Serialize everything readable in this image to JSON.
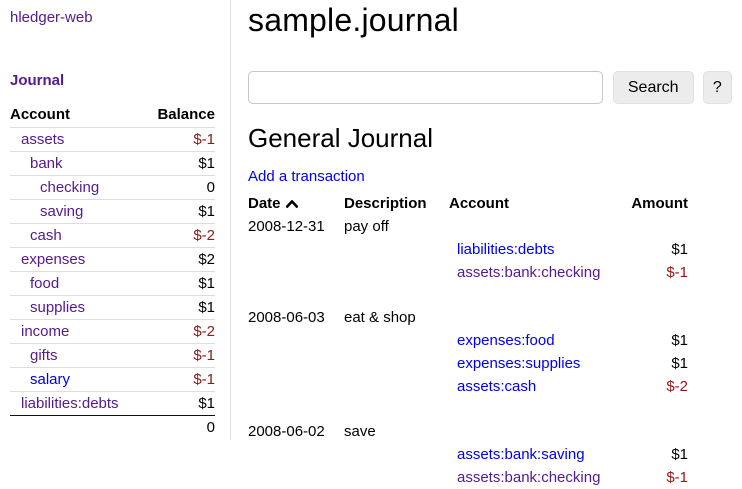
{
  "app": {
    "title": "hledger-web"
  },
  "sidebar": {
    "nav_heading": "Journal",
    "table": {
      "col_account": "Account",
      "col_balance": "Balance",
      "rows": [
        {
          "name": "assets",
          "depth": 0,
          "balance": "$-1",
          "negative": true,
          "visited": true
        },
        {
          "name": "bank",
          "depth": 1,
          "balance": "$1",
          "negative": false,
          "visited": true
        },
        {
          "name": "checking",
          "depth": 2,
          "balance": "0",
          "negative": false,
          "visited": true
        },
        {
          "name": "saving",
          "depth": 2,
          "balance": "$1",
          "negative": false,
          "visited": true
        },
        {
          "name": "cash",
          "depth": 1,
          "balance": "$-2",
          "negative": true,
          "visited": true
        },
        {
          "name": "expenses",
          "depth": 0,
          "balance": "$2",
          "negative": false,
          "visited": true
        },
        {
          "name": "food",
          "depth": 1,
          "balance": "$1",
          "negative": false,
          "visited": true
        },
        {
          "name": "supplies",
          "depth": 1,
          "balance": "$1",
          "negative": false,
          "visited": true
        },
        {
          "name": "income",
          "depth": 0,
          "balance": "$-2",
          "negative": true,
          "visited": true
        },
        {
          "name": "gifts",
          "depth": 1,
          "balance": "$-1",
          "negative": true,
          "visited": true
        },
        {
          "name": "salary",
          "depth": 1,
          "balance": "$-1",
          "negative": true,
          "visited": false
        },
        {
          "name": "liabilities:debts",
          "depth": 0,
          "balance": "$1",
          "negative": false,
          "visited": true
        }
      ],
      "total": "0"
    }
  },
  "main": {
    "page_title": "sample.journal",
    "search": {
      "value": "",
      "placeholder": "",
      "button_label": "Search",
      "help_label": "?"
    },
    "section_title": "General Journal",
    "add_transaction_label": "Add a transaction",
    "journal": {
      "headers": {
        "date": "Date",
        "description": "Description",
        "account": "Account",
        "amount": "Amount"
      },
      "sort": {
        "column": "date",
        "direction": "ascending",
        "icon": "chevron-up-icon"
      },
      "transactions": [
        {
          "date": "2008-12-31",
          "description": "pay off",
          "postings": [
            {
              "account": "liabilities:debts",
              "amount": "$1",
              "negative": false,
              "visited": false
            },
            {
              "account": "assets:bank:checking",
              "amount": "$-1",
              "negative": true,
              "visited": true
            }
          ]
        },
        {
          "date": "2008-06-03",
          "description": "eat & shop",
          "postings": [
            {
              "account": "expenses:food",
              "amount": "$1",
              "negative": false,
              "visited": false
            },
            {
              "account": "expenses:supplies",
              "amount": "$1",
              "negative": false,
              "visited": false
            },
            {
              "account": "assets:cash",
              "amount": "$-2",
              "negative": true,
              "visited": false
            }
          ]
        },
        {
          "date": "2008-06-02",
          "description": "save",
          "postings": [
            {
              "account": "assets:bank:saving",
              "amount": "$1",
              "negative": false,
              "visited": false
            },
            {
              "account": "assets:bank:checking",
              "amount": "$-1",
              "negative": true,
              "visited": true
            }
          ]
        }
      ]
    }
  },
  "colors": {
    "link_blue": "#0000e6",
    "link_visited": "#551a8b",
    "negative_amount": "#8b1a1a",
    "text": "#000000",
    "border_light": "#dddddd",
    "button_bg": "#ececec"
  }
}
